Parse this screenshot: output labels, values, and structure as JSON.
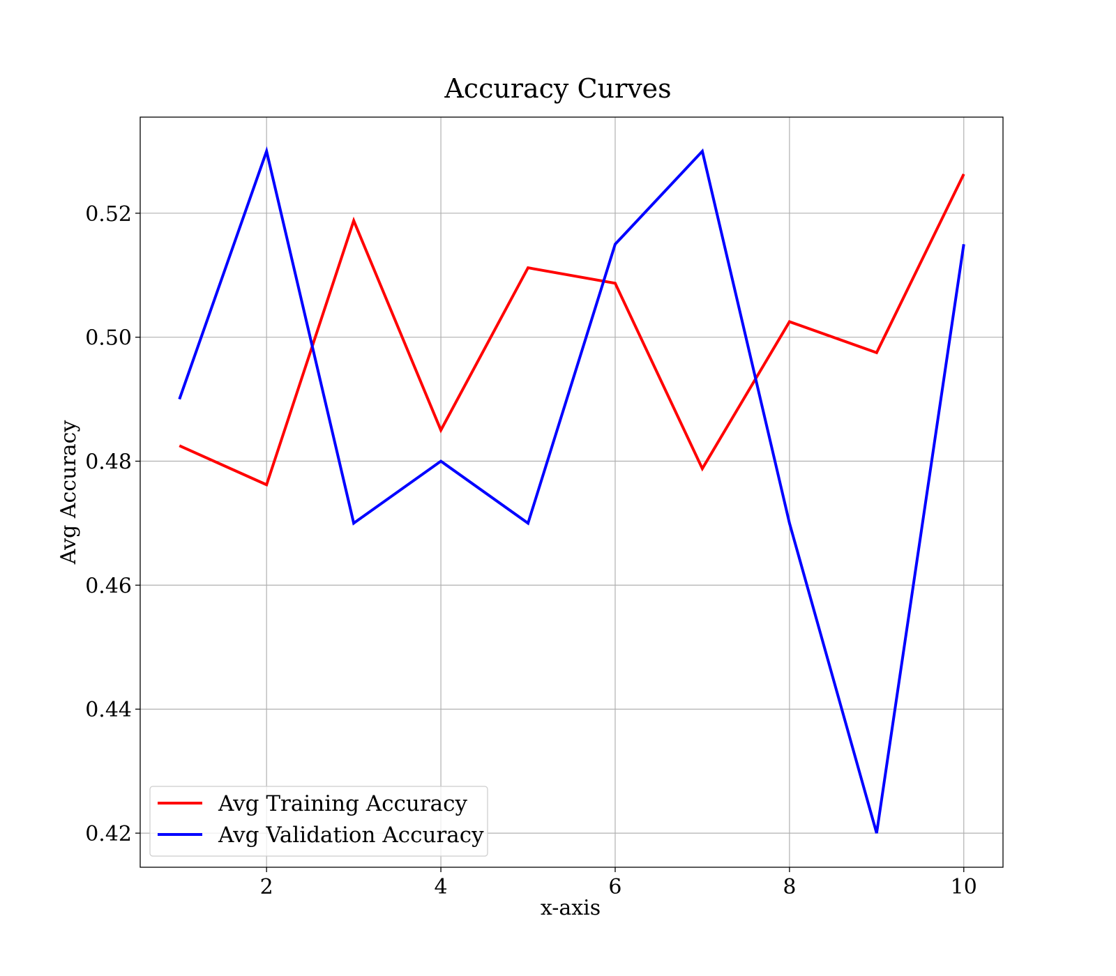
{
  "chart_data": {
    "type": "line",
    "title": "Accuracy Curves",
    "xlabel": "x-axis",
    "ylabel": "Avg Accuracy",
    "x": [
      1,
      2,
      3,
      4,
      5,
      6,
      7,
      8,
      9,
      10
    ],
    "xlim": [
      0.55,
      10.45
    ],
    "ylim": [
      0.4145,
      0.5355
    ],
    "xticks": [
      2,
      4,
      6,
      8,
      10
    ],
    "xtick_labels": [
      "2",
      "4",
      "6",
      "8",
      "10"
    ],
    "yticks": [
      0.42,
      0.44,
      0.46,
      0.48,
      0.5,
      0.52
    ],
    "ytick_labels": [
      "0.42",
      "0.44",
      "0.46",
      "0.48",
      "0.50",
      "0.52"
    ],
    "grid": true,
    "legend_position": "lower-left",
    "series": [
      {
        "name": "Avg Training Accuracy",
        "color": "#ff0000",
        "values": [
          0.4825,
          0.4762,
          0.5188,
          0.485,
          0.5112,
          0.5087,
          0.4788,
          0.5025,
          0.4975,
          0.5263
        ]
      },
      {
        "name": "Avg Validation Accuracy",
        "color": "#0000ff",
        "values": [
          0.49,
          0.53,
          0.47,
          0.48,
          0.47,
          0.515,
          0.53,
          0.47,
          0.42,
          0.515
        ]
      }
    ]
  }
}
